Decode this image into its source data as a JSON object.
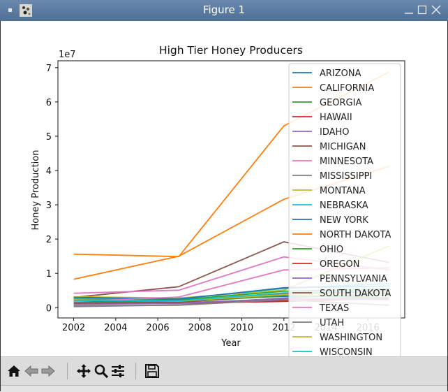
{
  "window": {
    "title": "Figure 1",
    "icon": "matplotlib-app-icon",
    "controls": [
      "minimize-icon",
      "maximize-icon",
      "close-icon"
    ]
  },
  "toolbar": {
    "buttons": [
      {
        "name": "home-button",
        "icon": "home-icon"
      },
      {
        "name": "back-button",
        "icon": "arrow-left-icon"
      },
      {
        "name": "forward-button",
        "icon": "arrow-right-icon"
      },
      {
        "name": "pan-button",
        "icon": "move-icon"
      },
      {
        "name": "zoom-button",
        "icon": "magnifier-icon"
      },
      {
        "name": "configure-subplots-button",
        "icon": "sliders-icon"
      },
      {
        "name": "save-button",
        "icon": "floppy-disk-icon"
      }
    ]
  },
  "chart_data": {
    "type": "line",
    "title": "High Tier Honey Producers",
    "xlabel": "Year",
    "ylabel": "Honey Production",
    "offset_text": "1e7",
    "xlim": [
      2001.25,
      2017.75
    ],
    "ylim": [
      -3000000,
      72000000
    ],
    "x": [
      2002,
      2007,
      2012,
      2017
    ],
    "xticks": [
      "2002",
      "2004",
      "2006",
      "2008",
      "2010",
      "2012",
      "2014",
      "2016"
    ],
    "xtick_values": [
      2002,
      2004,
      2006,
      2008,
      2010,
      2012,
      2014,
      2016
    ],
    "yticks": [
      "0",
      "1",
      "2",
      "3",
      "4",
      "5",
      "6",
      "7"
    ],
    "ytick_values": [
      0,
      10000000,
      20000000,
      30000000,
      40000000,
      50000000,
      60000000,
      70000000
    ],
    "legend_position": "upper right",
    "series": [
      {
        "name": "ARIZONA",
        "color": "#1f77b4",
        "values": [
          2500000,
          2200000,
          3300000,
          3500000
        ]
      },
      {
        "name": "CALIFORNIA",
        "color": "#ff7f0e",
        "values": [
          15600000,
          14900000,
          53000000,
          68700000
        ]
      },
      {
        "name": "GEORGIA",
        "color": "#2ca02c",
        "values": [
          2000000,
          2300000,
          4800000,
          5500000
        ]
      },
      {
        "name": "HAWAII",
        "color": "#d62728",
        "values": [
          1300000,
          1500000,
          2100000,
          2600000
        ]
      },
      {
        "name": "IDAHO",
        "color": "#9467bd",
        "values": [
          1500000,
          1400000,
          2500000,
          2900000
        ]
      },
      {
        "name": "MICHIGAN",
        "color": "#8c564b",
        "values": [
          3000000,
          6100000,
          19200000,
          13200000
        ]
      },
      {
        "name": "MINNESOTA",
        "color": "#e377c2",
        "values": [
          4200000,
          5100000,
          14800000,
          11000000
        ]
      },
      {
        "name": "MISSISSIPPI",
        "color": "#7f7f7f",
        "values": [
          300000,
          800000,
          2800000,
          4200000
        ]
      },
      {
        "name": "MONTANA",
        "color": "#bcbd22",
        "values": [
          3200000,
          2800000,
          5100000,
          18000000
        ]
      },
      {
        "name": "NEBRASKA",
        "color": "#17becf",
        "values": [
          2700000,
          2600000,
          5600000,
          7000000
        ]
      },
      {
        "name": "NEW YORK",
        "color": "#1f77b4",
        "values": [
          3000000,
          2500000,
          5800000,
          6300000
        ]
      },
      {
        "name": "NORTH DAKOTA",
        "color": "#ff7f0e",
        "values": [
          8300000,
          15000000,
          31600000,
          41200000
        ]
      },
      {
        "name": "OHIO",
        "color": "#2ca02c",
        "values": [
          1800000,
          1600000,
          3500000,
          2900000
        ]
      },
      {
        "name": "OREGON",
        "color": "#d62728",
        "values": [
          1200000,
          1300000,
          1800000,
          2700000
        ]
      },
      {
        "name": "PENNSYLVANIA",
        "color": "#9467bd",
        "values": [
          1000000,
          1200000,
          2700000,
          2300000
        ]
      },
      {
        "name": "SOUTH DAKOTA",
        "color": "#8c564b",
        "values": [
          1300000,
          1500000,
          4000000,
          4700000
        ]
      },
      {
        "name": "TEXAS",
        "color": "#e377c2",
        "values": [
          1800000,
          3100000,
          11000000,
          11600000
        ]
      },
      {
        "name": "UTAH",
        "color": "#7f7f7f",
        "values": [
          600000,
          700000,
          2300000,
          700000
        ]
      },
      {
        "name": "WASHINGTON",
        "color": "#bcbd22",
        "values": [
          2300000,
          1900000,
          3800000,
          4500000
        ]
      },
      {
        "name": "WISCONSIN",
        "color": "#17becf",
        "values": [
          2100000,
          2000000,
          4300000,
          5100000
        ]
      }
    ]
  }
}
